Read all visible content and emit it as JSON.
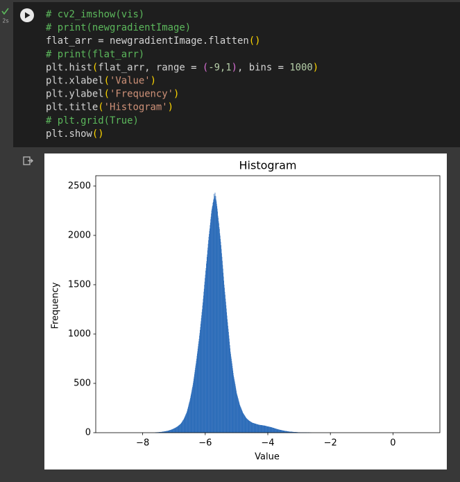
{
  "cell": {
    "exec_time": "2s",
    "code": [
      [
        {
          "text": "# cv2_imshow(vis)",
          "color": "#5cb85c"
        }
      ],
      [
        {
          "text": "# print(newgradientImage)",
          "color": "#5cb85c"
        }
      ],
      [
        {
          "text": "flat_arr = newgradientImage.flatten",
          "color": "#d4d4d4"
        },
        {
          "text": "()",
          "color": "#ffd700"
        }
      ],
      [
        {
          "text": "# print(flat_arr)",
          "color": "#5cb85c"
        }
      ],
      [
        {
          "text": "plt.hist",
          "color": "#d4d4d4"
        },
        {
          "text": "(",
          "color": "#ffd700"
        },
        {
          "text": "flat_arr, range = ",
          "color": "#d4d4d4"
        },
        {
          "text": "(",
          "color": "#da70d6"
        },
        {
          "text": "-9,1",
          "color": "#b5cea8"
        },
        {
          "text": ")",
          "color": "#da70d6"
        },
        {
          "text": ", bins = ",
          "color": "#d4d4d4"
        },
        {
          "text": "1000",
          "color": "#b5cea8"
        },
        {
          "text": ")",
          "color": "#ffd700"
        }
      ],
      [
        {
          "text": "plt.xlabel",
          "color": "#d4d4d4"
        },
        {
          "text": "(",
          "color": "#ffd700"
        },
        {
          "text": "'Value'",
          "color": "#ce9178"
        },
        {
          "text": ")",
          "color": "#ffd700"
        }
      ],
      [
        {
          "text": "plt.ylabel",
          "color": "#d4d4d4"
        },
        {
          "text": "(",
          "color": "#ffd700"
        },
        {
          "text": "'Frequency'",
          "color": "#ce9178"
        },
        {
          "text": ")",
          "color": "#ffd700"
        }
      ],
      [
        {
          "text": "plt.title",
          "color": "#d4d4d4"
        },
        {
          "text": "(",
          "color": "#ffd700"
        },
        {
          "text": "'Histogram'",
          "color": "#ce9178"
        },
        {
          "text": ")",
          "color": "#ffd700"
        }
      ],
      [
        {
          "text": "# plt.grid(True)",
          "color": "#5cb85c"
        }
      ],
      [
        {
          "text": "plt.show",
          "color": "#d4d4d4"
        },
        {
          "text": "()",
          "color": "#ffd700"
        }
      ]
    ]
  },
  "chart_data": {
    "type": "histogram",
    "title": "Histogram",
    "x_label": "Value",
    "y_label": "Frequency",
    "color": "#2a6bb8",
    "xlim": [
      -9.5,
      1.5
    ],
    "xticks": [
      {
        "value": -8,
        "label": "−8"
      },
      {
        "value": -6,
        "label": "−6"
      },
      {
        "value": -4,
        "label": "−4"
      },
      {
        "value": -2,
        "label": "−2"
      },
      0
    ],
    "ylim": [
      0,
      2605
    ],
    "yticks": [
      0,
      500,
      1000,
      1500,
      2000,
      2500
    ],
    "grid": false,
    "bins": [
      -7.6,
      -7.59,
      -7.58,
      -7.57,
      -7.56,
      -7.55,
      -7.54,
      -7.53,
      -7.52,
      -7.51,
      -7.5,
      -7.49,
      -7.48,
      -7.47,
      -7.46,
      -7.45,
      -7.44,
      -7.43,
      -7.42,
      -7.41,
      -7.4,
      -7.39,
      -7.38,
      -7.37,
      -7.36,
      -7.35,
      -7.34,
      -7.33,
      -7.32,
      -7.31,
      -7.3,
      -7.29,
      -7.28,
      -7.27,
      -7.26,
      -7.25,
      -7.24,
      -7.23,
      -7.22,
      -7.21,
      -7.2,
      -7.19,
      -7.18,
      -7.17,
      -7.16,
      -7.15,
      -7.14,
      -7.13,
      -7.12,
      -7.11,
      -7.1,
      -7.09,
      -7.08,
      -7.07,
      -7.06,
      -7.05,
      -7.04,
      -7.03,
      -7.02,
      -7.01,
      -7.0,
      -6.99,
      -6.98,
      -6.97,
      -6.96,
      -6.95,
      -6.94,
      -6.93,
      -6.92,
      -6.91,
      -6.9,
      -6.89,
      -6.88,
      -6.87,
      -6.86,
      -6.85,
      -6.84,
      -6.83,
      -6.82,
      -6.81,
      -6.8,
      -6.79,
      -6.78,
      -6.77,
      -6.76,
      -6.75,
      -6.74,
      -6.73,
      -6.72,
      -6.71,
      -6.7,
      -6.69,
      -6.68,
      -6.67,
      -6.66,
      -6.65,
      -6.64,
      -6.63,
      -6.62,
      -6.61,
      -6.6,
      -6.59,
      -6.58,
      -6.57,
      -6.56,
      -6.55,
      -6.54,
      -6.53,
      -6.52,
      -6.51,
      -6.5,
      -6.49,
      -6.48,
      -6.47,
      -6.46,
      -6.45,
      -6.44,
      -6.43,
      -6.42,
      -6.41,
      -6.4,
      -6.39,
      -6.38,
      -6.37,
      -6.36,
      -6.35,
      -6.34,
      -6.33,
      -6.32,
      -6.31,
      -6.3,
      -6.29,
      -6.28,
      -6.27,
      -6.26,
      -6.25,
      -6.24,
      -6.23,
      -6.22,
      -6.21,
      -6.2,
      -6.19,
      -6.18,
      -6.17,
      -6.16,
      -6.15,
      -6.14,
      -6.13,
      -6.12,
      -6.11,
      -6.1,
      -6.09,
      -6.08,
      -6.07,
      -6.06,
      -6.05,
      -6.04,
      -6.03,
      -6.02,
      -6.01,
      -6.0,
      -5.99,
      -5.98,
      -5.97,
      -5.96,
      -5.95,
      -5.94,
      -5.93,
      -5.92,
      -5.91,
      -5.9,
      -5.89,
      -5.88,
      -5.87,
      -5.86,
      -5.85,
      -5.84,
      -5.83,
      -5.82,
      -5.81,
      -5.8,
      -5.79,
      -5.78,
      -5.77,
      -5.76,
      -5.75,
      -5.74,
      -5.73,
      -5.72,
      -5.71,
      -5.7,
      -5.69,
      -5.68,
      -5.67,
      -5.66,
      -5.65,
      -5.64,
      -5.63,
      -5.62,
      -5.61,
      -5.6,
      -5.59,
      -5.58,
      -5.57,
      -5.56,
      -5.55,
      -5.54,
      -5.53,
      -5.52,
      -5.51,
      -5.5,
      -5.49,
      -5.48,
      -5.47,
      -5.46,
      -5.45,
      -5.44,
      -5.43,
      -5.42,
      -5.41,
      -5.4,
      -5.39,
      -5.38,
      -5.37,
      -5.36,
      -5.35,
      -5.34,
      -5.33,
      -5.32,
      -5.31,
      -5.3,
      -5.29,
      -5.28,
      -5.27,
      -5.26,
      -5.25,
      -5.24,
      -5.23,
      -5.22,
      -5.21,
      -5.2,
      -5.19,
      -5.18,
      -5.17,
      -5.16,
      -5.15,
      -5.14,
      -5.13,
      -5.12,
      -5.11,
      -5.1,
      -5.09,
      -5.08,
      -5.07,
      -5.06,
      -5.05,
      -5.04,
      -5.03,
      -5.02,
      -5.01,
      -5.0,
      -4.99,
      -4.98,
      -4.97,
      -4.96,
      -4.95,
      -4.94,
      -4.93,
      -4.92,
      -4.91,
      -4.9,
      -4.89,
      -4.88,
      -4.87,
      -4.86,
      -4.85,
      -4.84,
      -4.83,
      -4.82,
      -4.81,
      -4.8,
      -4.79,
      -4.78,
      -4.77,
      -4.76,
      -4.75,
      -4.74,
      -4.73,
      -4.72,
      -4.71,
      -4.7,
      -4.69,
      -4.68,
      -4.67,
      -4.66,
      -4.65,
      -4.64,
      -4.63,
      -4.62,
      -4.61,
      -4.6,
      -4.59,
      -4.58,
      -4.57,
      -4.56,
      -4.55,
      -4.54,
      -4.53,
      -4.52,
      -4.51,
      -4.5,
      -4.49,
      -4.48,
      -4.47,
      -4.46,
      -4.45,
      -4.44,
      -4.43,
      -4.42,
      -4.41,
      -4.4,
      -4.39,
      -4.38,
      -4.37,
      -4.36,
      -4.35,
      -4.34,
      -4.33,
      -4.32,
      -4.31,
      -4.3,
      -4.29,
      -4.28,
      -4.27,
      -4.26,
      -4.25,
      -4.24,
      -4.23,
      -4.22,
      -4.21,
      -4.2,
      -4.19,
      -4.18,
      -4.17,
      -4.16,
      -4.15,
      -4.14,
      -4.13,
      -4.12,
      -4.11,
      -4.1,
      -4.09,
      -4.08,
      -4.07,
      -4.06,
      -4.05,
      -4.04,
      -4.03,
      -4.02,
      -4.01,
      -4.0,
      -3.99,
      -3.98,
      -3.97,
      -3.96,
      -3.95,
      -3.94,
      -3.93,
      -3.92,
      -3.91,
      -3.9,
      -3.89,
      -3.88,
      -3.87,
      -3.86,
      -3.85,
      -3.84,
      -3.83,
      -3.82,
      -3.81,
      -3.8,
      -3.79,
      -3.78,
      -3.77,
      -3.76,
      -3.75,
      -3.74,
      -3.73,
      -3.72,
      -3.71,
      -3.7,
      -3.69,
      -3.68,
      -3.67,
      -3.66,
      -3.65,
      -3.64,
      -3.63,
      -3.62,
      -3.61,
      -3.6,
      -3.59,
      -3.58,
      -3.57,
      -3.56,
      -3.55,
      -3.54,
      -3.53,
      -3.52,
      -3.51,
      -3.5,
      -3.49,
      -3.48,
      -3.47,
      -3.46,
      -3.45,
      -3.44,
      -3.43,
      -3.42,
      -3.41,
      -3.4,
      -3.39,
      -3.38,
      -3.37,
      -3.36,
      -3.35,
      -3.34,
      -3.33,
      -3.32,
      -3.31,
      -3.3,
      -3.29,
      -3.28,
      -3.27,
      -3.26,
      -3.25,
      -3.24,
      -3.23,
      -3.22,
      -3.21,
      -3.2,
      -3.19,
      -3.18,
      -3.17,
      -3.16,
      -3.15,
      -3.14,
      -3.13,
      -3.12,
      -3.11,
      -3.1,
      -3.09,
      -3.08,
      -3.07,
      -3.06,
      -3.05,
      -3.04,
      -3.03,
      -3.02,
      -3.01,
      -3.0,
      -2.99,
      -2.98,
      -2.97,
      -2.96,
      -2.95,
      -2.94,
      -2.93,
      -2.92,
      -2.91,
      -2.9,
      -2.89,
      -2.88,
      -2.87,
      -2.86,
      -2.85,
      -2.84,
      -2.83,
      -2.82,
      -2.81,
      -2.8,
      -2.79,
      -2.78,
      -2.77,
      -2.76,
      -2.75,
      -2.74,
      -2.73,
      -2.72,
      -2.71,
      -2.7,
      -2.69,
      -2.68,
      -2.67,
      -2.66,
      -2.65,
      -2.64,
      -2.63,
      -2.62,
      -2.61,
      -2.6
    ],
    "values": [
      2,
      1,
      3,
      2,
      3,
      2,
      4,
      3,
      3,
      4,
      4,
      3,
      5,
      4,
      6,
      5,
      5,
      7,
      6,
      6,
      7,
      8,
      7,
      9,
      8,
      10,
      9,
      11,
      10,
      12,
      12,
      13,
      12,
      14,
      15,
      14,
      16,
      17,
      16,
      18,
      18,
      20,
      19,
      22,
      21,
      24,
      23,
      26,
      25,
      27,
      28,
      30,
      29,
      33,
      32,
      35,
      36,
      38,
      39,
      41,
      42,
      44,
      46,
      45,
      49,
      51,
      50,
      55,
      56,
      58,
      60,
      63,
      65,
      66,
      70,
      72,
      75,
      77,
      80,
      83,
      85,
      90,
      92,
      98,
      101,
      107,
      110,
      116,
      121,
      126,
      130,
      137,
      143,
      151,
      157,
      165,
      171,
      180,
      186,
      194,
      200,
      212,
      222,
      236,
      246,
      259,
      270,
      283,
      296,
      308,
      320,
      336,
      350,
      368,
      384,
      398,
      415,
      432,
      448,
      464,
      480,
      503,
      522,
      546,
      567,
      591,
      612,
      634,
      656,
      679,
      700,
      726,
      748,
      776,
      800,
      824,
      851,
      874,
      901,
      925,
      950,
      982,
      1008,
      1041,
      1069,
      1102,
      1128,
      1160,
      1188,
      1221,
      1250,
      1287,
      1319,
      1356,
      1388,
      1427,
      1458,
      1497,
      1529,
      1566,
      1600,
      1641,
      1668,
      1712,
      1738,
      1779,
      1806,
      1847,
      1875,
      1913,
      1950,
      1983,
      2011,
      2044,
      2069,
      2102,
      2128,
      2163,
      2188,
      2221,
      2250,
      2268,
      2291,
      2302,
      2330,
      2338,
      2361,
      2372,
      2420,
      2385,
      2400,
      2432,
      2371,
      2398,
      2360,
      2342,
      2318,
      2295,
      2270,
      2241,
      2200,
      2178,
      2142,
      2121,
      2082,
      2063,
      2021,
      1996,
      1962,
      1934,
      1900,
      1861,
      1818,
      1782,
      1741,
      1700,
      1662,
      1620,
      1581,
      1540,
      1500,
      1468,
      1428,
      1397,
      1358,
      1326,
      1290,
      1257,
      1219,
      1186,
      1150,
      1118,
      1082,
      1051,
      1019,
      985,
      953,
      920,
      886,
      853,
      820,
      797,
      771,
      749,
      724,
      701,
      676,
      652,
      628,
      604,
      580,
      563,
      544,
      527,
      509,
      491,
      473,
      455,
      437,
      419,
      400,
      388,
      376,
      364,
      351,
      340,
      327,
      315,
      304,
      292,
      280,
      272,
      263,
      257,
      248,
      240,
      232,
      224,
      216,
      208,
      200,
      195,
      191,
      185,
      180,
      174,
      170,
      165,
      160,
      155,
      150,
      146,
      144,
      140,
      137,
      134,
      131,
      128,
      125,
      122,
      120,
      118,
      116,
      114,
      112,
      110,
      108,
      106,
      104,
      102,
      100,
      99,
      98,
      97,
      96,
      95,
      94,
      93,
      92,
      91,
      90,
      89,
      88,
      87,
      86,
      85,
      84,
      83,
      82,
      81,
      80,
      79,
      80,
      78,
      77,
      78,
      76,
      77,
      75,
      76,
      75,
      74,
      75,
      73,
      72,
      73,
      71,
      72,
      70,
      71,
      70,
      69,
      68,
      68,
      66,
      66,
      65,
      64,
      63,
      63,
      62,
      61,
      61,
      60,
      59,
      58,
      58,
      57,
      56,
      56,
      55,
      54,
      53,
      52,
      51,
      50,
      49,
      48,
      47,
      46,
      45,
      44,
      43,
      42,
      41,
      40,
      39,
      38,
      37,
      36,
      35,
      34,
      33,
      32,
      32,
      31,
      30,
      29,
      28,
      28,
      27,
      26,
      26,
      25,
      24,
      23,
      23,
      22,
      21,
      21,
      20,
      19,
      19,
      18,
      17,
      17,
      16,
      16,
      15,
      15,
      14,
      14,
      13,
      13,
      12,
      12,
      11,
      11,
      10,
      10,
      10,
      9,
      9,
      9,
      8,
      8,
      8,
      8,
      7,
      7,
      7,
      7,
      6,
      6,
      6,
      6,
      5,
      5,
      5,
      5,
      5,
      4,
      4,
      4,
      4,
      4,
      3,
      3,
      3,
      3,
      3,
      3,
      3,
      2,
      2,
      2,
      2,
      2,
      2,
      2,
      2,
      2,
      2,
      1,
      2,
      1,
      1,
      2,
      1,
      1,
      1,
      1,
      1,
      1,
      1,
      0,
      1,
      1,
      0,
      1,
      1,
      0,
      1,
      0,
      1,
      0,
      0,
      1,
      0,
      0
    ]
  }
}
